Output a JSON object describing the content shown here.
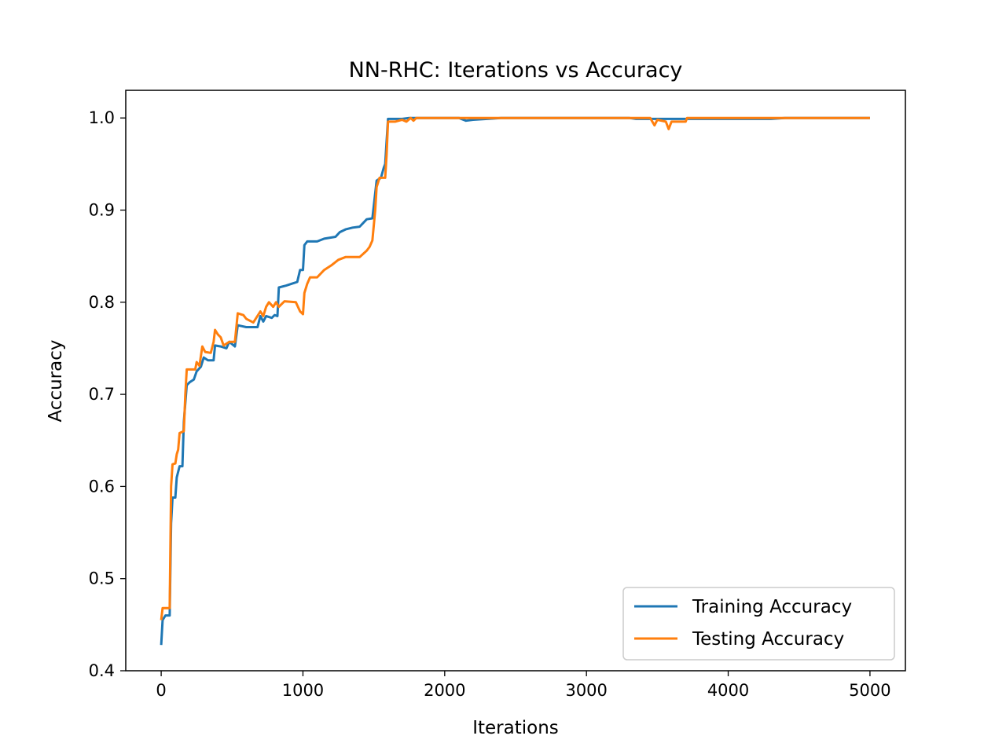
{
  "chart_data": {
    "type": "line",
    "title": "NN-RHC: Iterations vs Accuracy",
    "xlabel": "Iterations",
    "ylabel": "Accuracy",
    "xlim": [
      -250,
      5250
    ],
    "ylim": [
      0.4,
      1.03
    ],
    "xticks": [
      0,
      1000,
      2000,
      3000,
      4000,
      5000
    ],
    "yticks": [
      0.4,
      0.5,
      0.6,
      0.7,
      0.8,
      0.9,
      1.0
    ],
    "xtick_labels": [
      "0",
      "1000",
      "2000",
      "3000",
      "4000",
      "5000"
    ],
    "ytick_labels": [
      "0.4",
      "0.5",
      "0.6",
      "0.7",
      "0.8",
      "0.9",
      "1.0"
    ],
    "grid": false,
    "legend_position": "lower right",
    "series": [
      {
        "name": "Training Accuracy",
        "color": "#1f77b4",
        "points": [
          [
            0,
            0.428
          ],
          [
            10,
            0.455
          ],
          [
            30,
            0.46
          ],
          [
            60,
            0.46
          ],
          [
            70,
            0.56
          ],
          [
            80,
            0.588
          ],
          [
            100,
            0.588
          ],
          [
            110,
            0.61
          ],
          [
            130,
            0.622
          ],
          [
            150,
            0.622
          ],
          [
            160,
            0.67
          ],
          [
            180,
            0.71
          ],
          [
            200,
            0.713
          ],
          [
            230,
            0.716
          ],
          [
            250,
            0.725
          ],
          [
            280,
            0.73
          ],
          [
            300,
            0.74
          ],
          [
            330,
            0.737
          ],
          [
            370,
            0.737
          ],
          [
            380,
            0.753
          ],
          [
            420,
            0.752
          ],
          [
            460,
            0.75
          ],
          [
            480,
            0.757
          ],
          [
            520,
            0.752
          ],
          [
            540,
            0.775
          ],
          [
            570,
            0.774
          ],
          [
            600,
            0.773
          ],
          [
            680,
            0.773
          ],
          [
            700,
            0.785
          ],
          [
            720,
            0.779
          ],
          [
            740,
            0.785
          ],
          [
            780,
            0.783
          ],
          [
            800,
            0.786
          ],
          [
            820,
            0.785
          ],
          [
            830,
            0.816
          ],
          [
            880,
            0.818
          ],
          [
            920,
            0.82
          ],
          [
            960,
            0.822
          ],
          [
            980,
            0.835
          ],
          [
            1000,
            0.835
          ],
          [
            1010,
            0.862
          ],
          [
            1030,
            0.866
          ],
          [
            1100,
            0.866
          ],
          [
            1150,
            0.869
          ],
          [
            1230,
            0.871
          ],
          [
            1260,
            0.876
          ],
          [
            1300,
            0.879
          ],
          [
            1350,
            0.881
          ],
          [
            1400,
            0.882
          ],
          [
            1450,
            0.89
          ],
          [
            1490,
            0.891
          ],
          [
            1520,
            0.932
          ],
          [
            1550,
            0.935
          ],
          [
            1570,
            0.946
          ],
          [
            1580,
            0.95
          ],
          [
            1600,
            0.999
          ],
          [
            1700,
            0.999
          ],
          [
            1750,
            1.0
          ],
          [
            2100,
            1.0
          ],
          [
            2150,
            0.997
          ],
          [
            2200,
            0.998
          ],
          [
            2400,
            1.0
          ],
          [
            3300,
            1.0
          ],
          [
            3350,
            0.999
          ],
          [
            3700,
            0.999
          ],
          [
            4300,
            0.999
          ],
          [
            4400,
            1.0
          ],
          [
            5000,
            1.0
          ]
        ]
      },
      {
        "name": "Testing Accuracy",
        "color": "#ff7f0e",
        "points": [
          [
            0,
            0.455
          ],
          [
            10,
            0.468
          ],
          [
            50,
            0.468
          ],
          [
            60,
            0.468
          ],
          [
            70,
            0.6
          ],
          [
            80,
            0.624
          ],
          [
            100,
            0.625
          ],
          [
            110,
            0.635
          ],
          [
            120,
            0.64
          ],
          [
            130,
            0.658
          ],
          [
            160,
            0.66
          ],
          [
            170,
            0.7
          ],
          [
            180,
            0.727
          ],
          [
            240,
            0.727
          ],
          [
            250,
            0.735
          ],
          [
            270,
            0.731
          ],
          [
            290,
            0.752
          ],
          [
            310,
            0.746
          ],
          [
            350,
            0.745
          ],
          [
            370,
            0.757
          ],
          [
            380,
            0.77
          ],
          [
            400,
            0.765
          ],
          [
            420,
            0.762
          ],
          [
            440,
            0.753
          ],
          [
            480,
            0.757
          ],
          [
            520,
            0.757
          ],
          [
            540,
            0.788
          ],
          [
            580,
            0.786
          ],
          [
            600,
            0.782
          ],
          [
            650,
            0.778
          ],
          [
            700,
            0.79
          ],
          [
            720,
            0.785
          ],
          [
            740,
            0.795
          ],
          [
            760,
            0.8
          ],
          [
            790,
            0.795
          ],
          [
            810,
            0.8
          ],
          [
            830,
            0.795
          ],
          [
            850,
            0.798
          ],
          [
            870,
            0.801
          ],
          [
            950,
            0.8
          ],
          [
            980,
            0.79
          ],
          [
            1000,
            0.787
          ],
          [
            1010,
            0.81
          ],
          [
            1030,
            0.82
          ],
          [
            1050,
            0.827
          ],
          [
            1100,
            0.827
          ],
          [
            1150,
            0.835
          ],
          [
            1200,
            0.84
          ],
          [
            1250,
            0.846
          ],
          [
            1300,
            0.849
          ],
          [
            1400,
            0.849
          ],
          [
            1450,
            0.856
          ],
          [
            1470,
            0.86
          ],
          [
            1490,
            0.867
          ],
          [
            1510,
            0.9
          ],
          [
            1520,
            0.925
          ],
          [
            1540,
            0.935
          ],
          [
            1560,
            0.935
          ],
          [
            1580,
            0.935
          ],
          [
            1590,
            0.96
          ],
          [
            1600,
            0.996
          ],
          [
            1650,
            0.996
          ],
          [
            1700,
            0.998
          ],
          [
            1730,
            0.996
          ],
          [
            1760,
            1.0
          ],
          [
            1780,
            0.997
          ],
          [
            1800,
            1.0
          ],
          [
            3450,
            1.0
          ],
          [
            3480,
            0.992
          ],
          [
            3500,
            0.998
          ],
          [
            3560,
            0.996
          ],
          [
            3580,
            0.988
          ],
          [
            3600,
            0.996
          ],
          [
            3700,
            0.996
          ],
          [
            3710,
            1.0
          ],
          [
            5000,
            1.0
          ]
        ]
      }
    ]
  }
}
